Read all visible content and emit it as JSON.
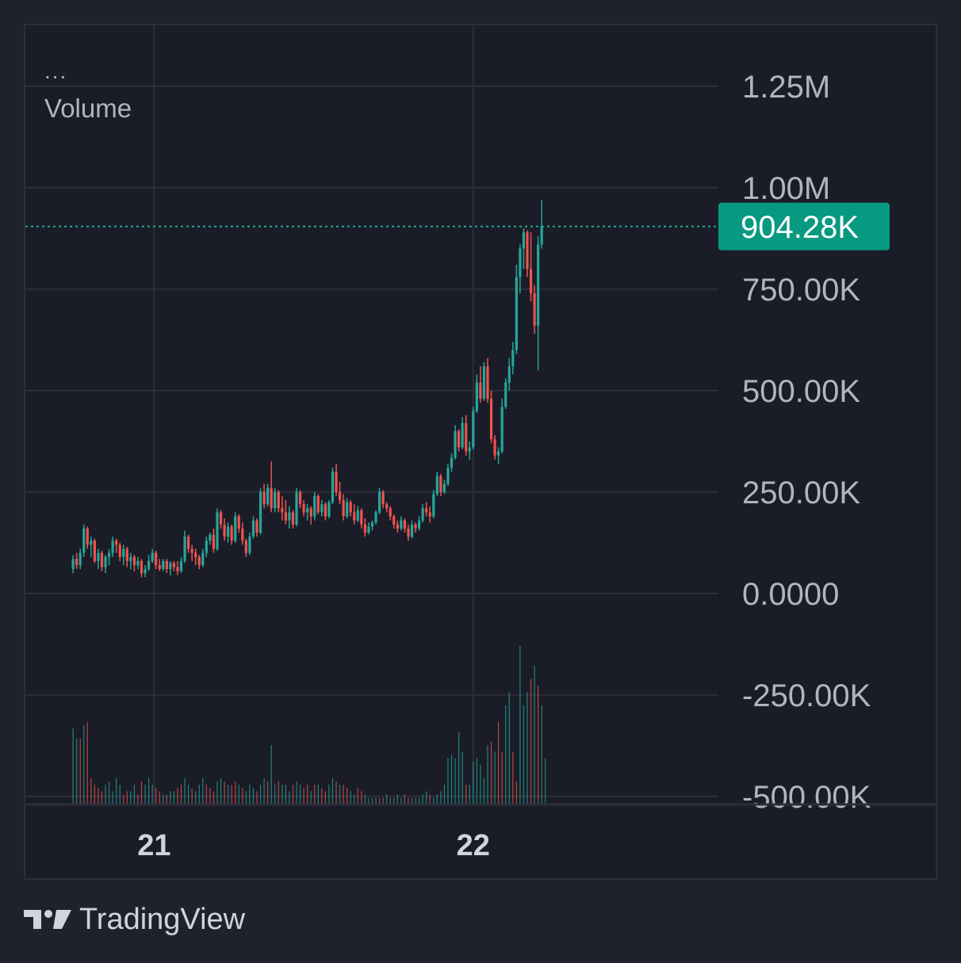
{
  "legend": {
    "dots": "...",
    "title": "Volume"
  },
  "branding": {
    "name": "TradingView",
    "icon": "tradingview-logo-icon"
  },
  "colors": {
    "background": "#1f222d",
    "pane": "#1a1d27",
    "grid": "#2c2f3b",
    "up": "#26a69a",
    "down": "#ef5350",
    "price_label": "#089981",
    "text": "#b2b5be"
  },
  "chart_data": {
    "type": "candlestick",
    "title": "",
    "grid": true,
    "y_axis": {
      "position": "right",
      "ylim": [
        -520000,
        1400000
      ],
      "ticks": [
        1250000,
        1000000,
        750000,
        500000,
        250000,
        0,
        -250000,
        -500000
      ],
      "tick_labels": [
        "1.25M",
        "1.00M",
        "750.00K",
        "500.00K",
        "250.00K",
        "0.0000",
        "-250.00K",
        "-500.00K"
      ]
    },
    "x_axis": {
      "xlim": [
        -13,
        179
      ],
      "ticks": [
        22.5,
        111
      ],
      "tick_labels": [
        "21",
        "22"
      ]
    },
    "last_price": {
      "value": 904280,
      "label": "904.28K"
    },
    "candles": [
      [
        60000,
        95000,
        50000,
        85000
      ],
      [
        85000,
        100000,
        60000,
        70000
      ],
      [
        70000,
        110000,
        60000,
        100000
      ],
      [
        100000,
        170000,
        90000,
        160000
      ],
      [
        160000,
        165000,
        110000,
        120000
      ],
      [
        120000,
        140000,
        90000,
        130000
      ],
      [
        130000,
        135000,
        75000,
        80000
      ],
      [
        80000,
        110000,
        60000,
        100000
      ],
      [
        100000,
        105000,
        55000,
        65000
      ],
      [
        65000,
        95000,
        50000,
        90000
      ],
      [
        90000,
        110000,
        70000,
        100000
      ],
      [
        100000,
        140000,
        90000,
        130000
      ],
      [
        130000,
        135000,
        100000,
        120000
      ],
      [
        120000,
        125000,
        80000,
        90000
      ],
      [
        90000,
        120000,
        70000,
        110000
      ],
      [
        110000,
        115000,
        65000,
        80000
      ],
      [
        80000,
        100000,
        60000,
        90000
      ],
      [
        90000,
        95000,
        55000,
        70000
      ],
      [
        70000,
        90000,
        60000,
        80000
      ],
      [
        80000,
        85000,
        40000,
        50000
      ],
      [
        50000,
        70000,
        40000,
        60000
      ],
      [
        60000,
        95000,
        55000,
        80000
      ],
      [
        80000,
        110000,
        75000,
        100000
      ],
      [
        100000,
        105000,
        60000,
        70000
      ],
      [
        70000,
        85000,
        55000,
        60000
      ],
      [
        60000,
        85000,
        55000,
        80000
      ],
      [
        80000,
        85000,
        50000,
        60000
      ],
      [
        60000,
        80000,
        45000,
        75000
      ],
      [
        75000,
        80000,
        55000,
        65000
      ],
      [
        65000,
        80000,
        45000,
        55000
      ],
      [
        55000,
        90000,
        50000,
        80000
      ],
      [
        80000,
        155000,
        75000,
        140000
      ],
      [
        140000,
        145000,
        100000,
        110000
      ],
      [
        110000,
        120000,
        80000,
        100000
      ],
      [
        100000,
        110000,
        70000,
        90000
      ],
      [
        90000,
        95000,
        60000,
        70000
      ],
      [
        70000,
        110000,
        65000,
        100000
      ],
      [
        100000,
        140000,
        90000,
        130000
      ],
      [
        130000,
        150000,
        120000,
        145000
      ],
      [
        145000,
        160000,
        100000,
        110000
      ],
      [
        110000,
        210000,
        105000,
        200000
      ],
      [
        200000,
        205000,
        160000,
        170000
      ],
      [
        170000,
        185000,
        130000,
        140000
      ],
      [
        140000,
        175000,
        125000,
        165000
      ],
      [
        165000,
        170000,
        120000,
        130000
      ],
      [
        130000,
        200000,
        125000,
        190000
      ],
      [
        190000,
        195000,
        150000,
        160000
      ],
      [
        160000,
        175000,
        120000,
        130000
      ],
      [
        130000,
        135000,
        90000,
        100000
      ],
      [
        100000,
        150000,
        95000,
        140000
      ],
      [
        140000,
        190000,
        135000,
        180000
      ],
      [
        180000,
        185000,
        140000,
        150000
      ],
      [
        150000,
        260000,
        145000,
        250000
      ],
      [
        250000,
        270000,
        210000,
        220000
      ],
      [
        220000,
        270000,
        215000,
        260000
      ],
      [
        260000,
        325000,
        200000,
        210000
      ],
      [
        210000,
        260000,
        200000,
        250000
      ],
      [
        250000,
        255000,
        200000,
        210000
      ],
      [
        210000,
        240000,
        180000,
        200000
      ],
      [
        200000,
        230000,
        170000,
        180000
      ],
      [
        180000,
        215000,
        160000,
        200000
      ],
      [
        200000,
        205000,
        160000,
        170000
      ],
      [
        170000,
        260000,
        165000,
        250000
      ],
      [
        250000,
        255000,
        210000,
        220000
      ],
      [
        220000,
        230000,
        190000,
        200000
      ],
      [
        200000,
        220000,
        180000,
        210000
      ],
      [
        210000,
        215000,
        170000,
        190000
      ],
      [
        190000,
        250000,
        180000,
        240000
      ],
      [
        240000,
        245000,
        195000,
        200000
      ],
      [
        200000,
        230000,
        190000,
        220000
      ],
      [
        220000,
        225000,
        180000,
        190000
      ],
      [
        190000,
        230000,
        185000,
        225000
      ],
      [
        225000,
        310000,
        220000,
        300000
      ],
      [
        300000,
        320000,
        240000,
        250000
      ],
      [
        250000,
        275000,
        220000,
        230000
      ],
      [
        230000,
        245000,
        180000,
        190000
      ],
      [
        190000,
        235000,
        185000,
        225000
      ],
      [
        225000,
        230000,
        190000,
        200000
      ],
      [
        200000,
        220000,
        170000,
        180000
      ],
      [
        180000,
        215000,
        175000,
        205000
      ],
      [
        205000,
        210000,
        160000,
        170000
      ],
      [
        170000,
        185000,
        140000,
        150000
      ],
      [
        150000,
        175000,
        145000,
        165000
      ],
      [
        165000,
        180000,
        155000,
        175000
      ],
      [
        175000,
        205000,
        170000,
        200000
      ],
      [
        200000,
        260000,
        195000,
        250000
      ],
      [
        250000,
        255000,
        210000,
        220000
      ],
      [
        220000,
        225000,
        200000,
        210000
      ],
      [
        210000,
        215000,
        180000,
        190000
      ],
      [
        190000,
        195000,
        160000,
        170000
      ],
      [
        170000,
        180000,
        150000,
        160000
      ],
      [
        160000,
        190000,
        155000,
        180000
      ],
      [
        180000,
        185000,
        150000,
        160000
      ],
      [
        160000,
        170000,
        130000,
        140000
      ],
      [
        140000,
        180000,
        135000,
        170000
      ],
      [
        170000,
        175000,
        150000,
        160000
      ],
      [
        160000,
        190000,
        155000,
        180000
      ],
      [
        180000,
        220000,
        175000,
        210000
      ],
      [
        210000,
        225000,
        190000,
        200000
      ],
      [
        200000,
        215000,
        175000,
        190000
      ],
      [
        190000,
        255000,
        185000,
        245000
      ],
      [
        245000,
        300000,
        240000,
        290000
      ],
      [
        290000,
        295000,
        240000,
        250000
      ],
      [
        250000,
        280000,
        245000,
        270000
      ],
      [
        270000,
        320000,
        265000,
        310000
      ],
      [
        310000,
        345000,
        300000,
        335000
      ],
      [
        335000,
        415000,
        330000,
        400000
      ],
      [
        400000,
        405000,
        350000,
        360000
      ],
      [
        360000,
        435000,
        355000,
        420000
      ],
      [
        420000,
        440000,
        340000,
        350000
      ],
      [
        350000,
        375000,
        330000,
        360000
      ],
      [
        360000,
        460000,
        355000,
        450000
      ],
      [
        450000,
        540000,
        445000,
        520000
      ],
      [
        520000,
        560000,
        470000,
        480000
      ],
      [
        480000,
        570000,
        475000,
        560000
      ],
      [
        560000,
        580000,
        470000,
        480000
      ],
      [
        480000,
        500000,
        370000,
        380000
      ],
      [
        380000,
        390000,
        330000,
        340000
      ],
      [
        340000,
        360000,
        320000,
        350000
      ],
      [
        350000,
        480000,
        345000,
        460000
      ],
      [
        460000,
        530000,
        455000,
        520000
      ],
      [
        520000,
        580000,
        500000,
        560000
      ],
      [
        560000,
        620000,
        540000,
        600000
      ],
      [
        600000,
        810000,
        590000,
        780000
      ],
      [
        780000,
        860000,
        740000,
        850000
      ],
      [
        850000,
        900000,
        800000,
        890000
      ],
      [
        890000,
        895000,
        780000,
        800000
      ],
      [
        800000,
        890000,
        720000,
        740000
      ],
      [
        740000,
        760000,
        640000,
        660000
      ],
      [
        660000,
        880000,
        550000,
        860000
      ],
      [
        860000,
        970000,
        850000,
        904280
      ]
    ],
    "volume": [
      [
        0,
        115000
      ],
      [
        0,
        100000
      ],
      [
        1,
        100000
      ],
      [
        0,
        120000
      ],
      [
        1,
        125000
      ],
      [
        1,
        40000
      ],
      [
        1,
        30000
      ],
      [
        1,
        25000
      ],
      [
        1,
        20000
      ],
      [
        0,
        30000
      ],
      [
        0,
        35000
      ],
      [
        0,
        20000
      ],
      [
        0,
        40000
      ],
      [
        0,
        30000
      ],
      [
        1,
        15000
      ],
      [
        1,
        20000
      ],
      [
        0,
        20000
      ],
      [
        0,
        30000
      ],
      [
        1,
        15000
      ],
      [
        1,
        35000
      ],
      [
        0,
        30000
      ],
      [
        0,
        40000
      ],
      [
        0,
        30000
      ],
      [
        1,
        25000
      ],
      [
        1,
        20000
      ],
      [
        0,
        15000
      ],
      [
        1,
        15000
      ],
      [
        0,
        20000
      ],
      [
        0,
        20000
      ],
      [
        1,
        25000
      ],
      [
        1,
        30000
      ],
      [
        0,
        40000
      ],
      [
        0,
        30000
      ],
      [
        1,
        25000
      ],
      [
        0,
        20000
      ],
      [
        0,
        30000
      ],
      [
        0,
        40000
      ],
      [
        1,
        30000
      ],
      [
        1,
        25000
      ],
      [
        1,
        20000
      ],
      [
        0,
        35000
      ],
      [
        0,
        40000
      ],
      [
        1,
        35000
      ],
      [
        0,
        30000
      ],
      [
        1,
        30000
      ],
      [
        1,
        35000
      ],
      [
        0,
        30000
      ],
      [
        1,
        25000
      ],
      [
        0,
        20000
      ],
      [
        0,
        30000
      ],
      [
        0,
        25000
      ],
      [
        1,
        20000
      ],
      [
        0,
        30000
      ],
      [
        0,
        40000
      ],
      [
        1,
        35000
      ],
      [
        0,
        90000
      ],
      [
        0,
        30000
      ],
      [
        1,
        35000
      ],
      [
        0,
        30000
      ],
      [
        0,
        30000
      ],
      [
        0,
        20000
      ],
      [
        1,
        30000
      ],
      [
        0,
        35000
      ],
      [
        0,
        30000
      ],
      [
        1,
        25000
      ],
      [
        1,
        30000
      ],
      [
        0,
        20000
      ],
      [
        1,
        30000
      ],
      [
        0,
        30000
      ],
      [
        1,
        25000
      ],
      [
        1,
        20000
      ],
      [
        0,
        30000
      ],
      [
        0,
        40000
      ],
      [
        1,
        35000
      ],
      [
        0,
        30000
      ],
      [
        1,
        30000
      ],
      [
        1,
        25000
      ],
      [
        0,
        20000
      ],
      [
        0,
        15000
      ],
      [
        1,
        25000
      ],
      [
        1,
        20000
      ],
      [
        0,
        15000
      ],
      [
        0,
        10000
      ],
      [
        0,
        10000
      ],
      [
        1,
        10000
      ],
      [
        0,
        10000
      ],
      [
        1,
        10000
      ],
      [
        0,
        15000
      ],
      [
        0,
        10000
      ],
      [
        1,
        10000
      ],
      [
        0,
        15000
      ],
      [
        0,
        10000
      ],
      [
        1,
        15000
      ],
      [
        0,
        10000
      ],
      [
        1,
        10000
      ],
      [
        0,
        10000
      ],
      [
        0,
        10000
      ],
      [
        0,
        15000
      ],
      [
        0,
        20000
      ],
      [
        1,
        15000
      ],
      [
        0,
        10000
      ],
      [
        0,
        15000
      ],
      [
        0,
        20000
      ],
      [
        0,
        30000
      ],
      [
        0,
        70000
      ],
      [
        0,
        75000
      ],
      [
        0,
        70000
      ],
      [
        0,
        110000
      ],
      [
        0,
        80000
      ],
      [
        1,
        30000
      ],
      [
        0,
        30000
      ],
      [
        0,
        65000
      ],
      [
        0,
        70000
      ],
      [
        0,
        60000
      ],
      [
        0,
        40000
      ],
      [
        0,
        90000
      ],
      [
        1,
        95000
      ],
      [
        0,
        80000
      ],
      [
        1,
        125000
      ],
      [
        1,
        80000
      ],
      [
        0,
        150000
      ],
      [
        0,
        170000
      ],
      [
        1,
        80000
      ],
      [
        1,
        35000
      ],
      [
        0,
        240000
      ],
      [
        0,
        150000
      ],
      [
        0,
        170000
      ],
      [
        1,
        190000
      ],
      [
        0,
        210000
      ],
      [
        1,
        180000
      ],
      [
        0,
        150000
      ],
      [
        0,
        70000
      ]
    ]
  }
}
